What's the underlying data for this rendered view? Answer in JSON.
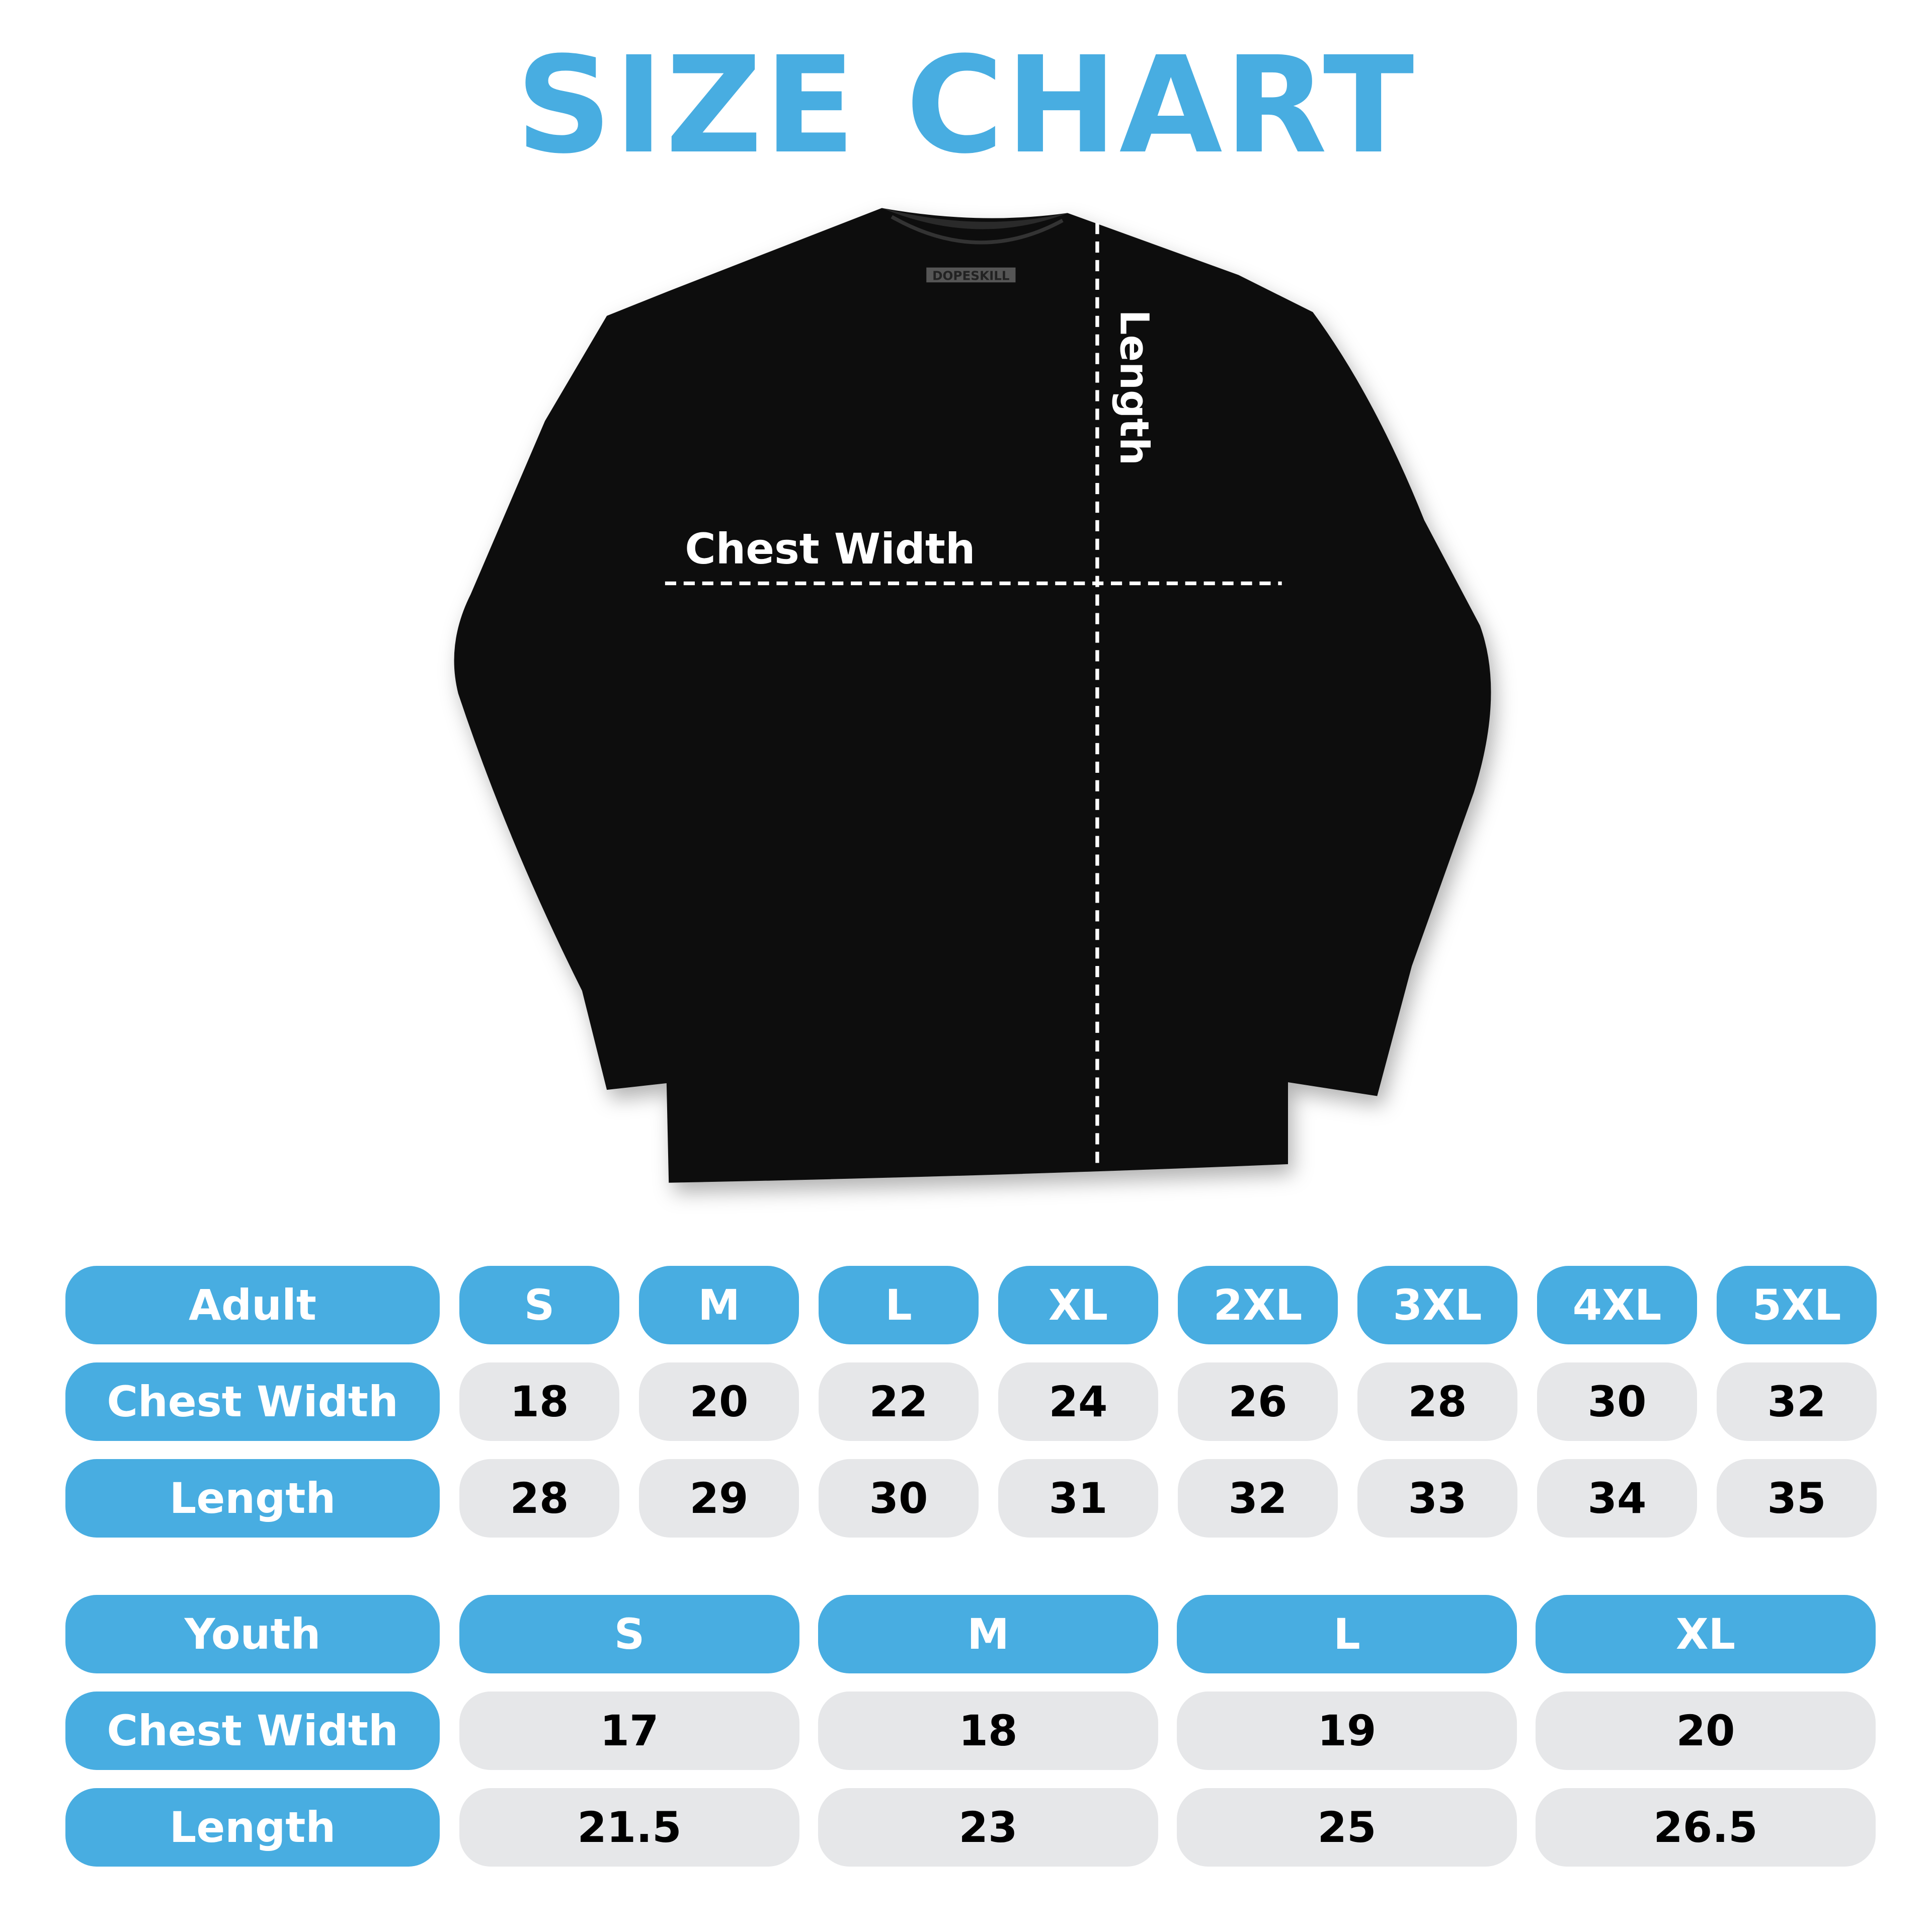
{
  "title": "SIZE CHART",
  "shirt": {
    "brand_tag": "DOPESKILL",
    "chest_label": "Chest Width",
    "length_label": "Length",
    "color": "#111111"
  },
  "colors": {
    "accent": "#48ade1",
    "cell_bg": "#e6e7e9"
  },
  "adult": {
    "header": "Adult",
    "sizes": [
      "S",
      "M",
      "L",
      "XL",
      "2XL",
      "3XL",
      "4XL",
      "5XL"
    ],
    "rows": [
      {
        "label": "Chest Width",
        "values": [
          "18",
          "20",
          "22",
          "24",
          "26",
          "28",
          "30",
          "32"
        ]
      },
      {
        "label": "Length",
        "values": [
          "28",
          "29",
          "30",
          "31",
          "32",
          "33",
          "34",
          "35"
        ]
      }
    ]
  },
  "youth": {
    "header": "Youth",
    "sizes": [
      "S",
      "M",
      "L",
      "XL"
    ],
    "rows": [
      {
        "label": "Chest Width",
        "values": [
          "17",
          "18",
          "19",
          "20"
        ]
      },
      {
        "label": "Length",
        "values": [
          "21.5",
          "23",
          "25",
          "26.5"
        ]
      }
    ]
  }
}
